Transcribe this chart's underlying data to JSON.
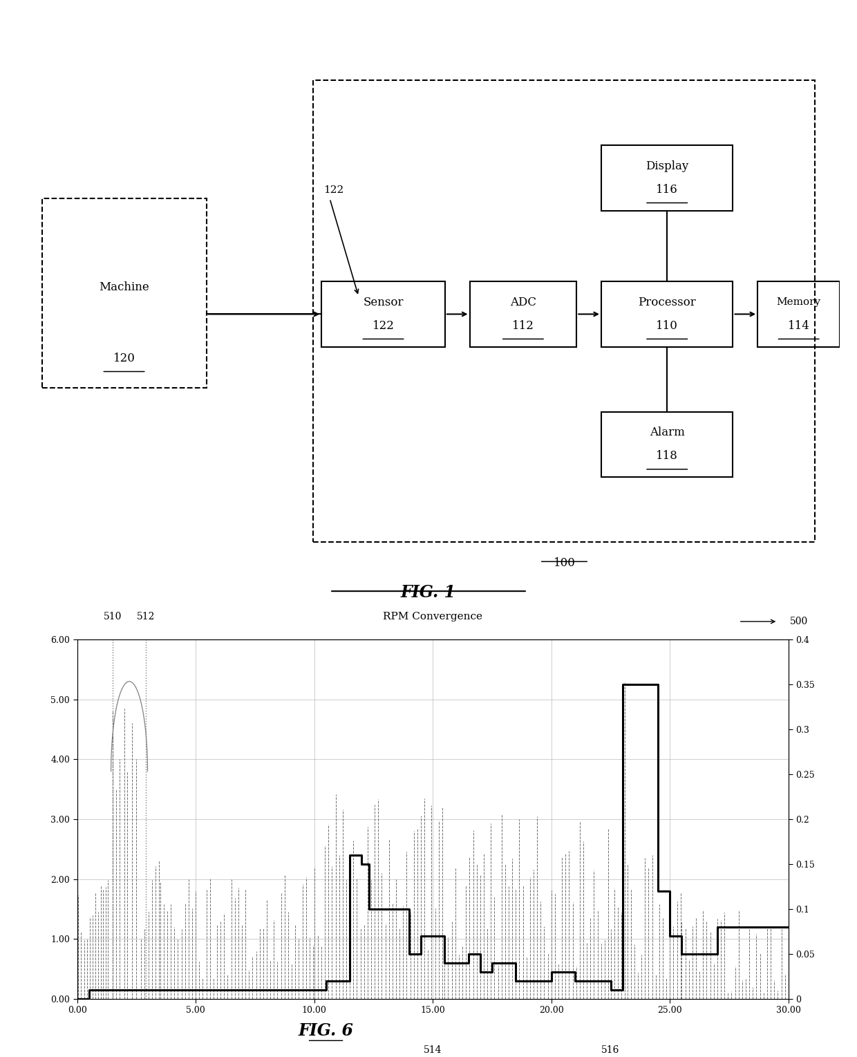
{
  "fig1": {
    "title": "FIG. 1",
    "label_100": "100",
    "machine_label": "Machine",
    "machine_num": "120",
    "sensor_label": "Sensor",
    "sensor_num": "122",
    "adc_label": "ADC",
    "adc_num": "112",
    "processor_label": "Processor",
    "processor_num": "110",
    "memory_label": "Memory",
    "memory_num": "114",
    "display_label": "Display",
    "display_num": "116",
    "alarm_label": "Alarm",
    "alarm_num": "118"
  },
  "fig6": {
    "title": "FIG. 6",
    "chart_title": "RPM Convergence",
    "label_500": "500",
    "label_510": "510",
    "label_512": "512",
    "label_514": "514",
    "label_516": "516",
    "xlim": [
      0,
      30
    ],
    "ylim_left": [
      0,
      6.0
    ],
    "ylim_right": [
      0,
      0.4
    ],
    "xtick_labels": [
      "0.00",
      "5.00",
      "10.00",
      "15.00",
      "20.00",
      "25.00",
      "30.00"
    ],
    "xtick_vals": [
      0.0,
      5.0,
      10.0,
      15.0,
      20.0,
      25.0,
      30.0
    ],
    "ytick_left_labels": [
      "0.00",
      "1.00",
      "2.00",
      "3.00",
      "4.00",
      "5.00",
      "6.00"
    ],
    "ytick_left_vals": [
      0.0,
      1.0,
      2.0,
      3.0,
      4.0,
      5.0,
      6.0
    ],
    "ytick_right_vals": [
      0,
      0.05,
      0.1,
      0.15,
      0.2,
      0.25,
      0.3,
      0.35,
      0.4
    ],
    "ytick_right_labels": [
      "0",
      "0.05",
      "0.1",
      "0.15",
      "0.2",
      "0.25",
      "0.3",
      "0.35",
      "0.4"
    ],
    "dashed_color": "#555555",
    "solid_color": "#000000",
    "background_color": "#ffffff",
    "grid_color": "#aaaaaa",
    "vline_510_x": 1.5,
    "vline_512_x": 2.9,
    "peak_x": 23.1,
    "peak_y": 5.3
  }
}
